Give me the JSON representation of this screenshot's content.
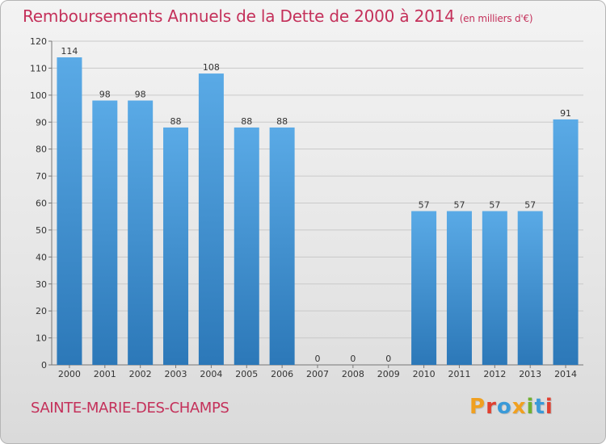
{
  "header": {
    "title": "Remboursements Annuels de la Dette de 2000 à 2014",
    "unit": "(en milliers d'€)"
  },
  "footer": {
    "commune": "SAINTE-MARIE-DES-CHAMPS",
    "logo": "Proxiti"
  },
  "colors": {
    "title": "#c4305a",
    "bar_light": "#5aaae6",
    "bar_dark": "#2c78b8",
    "logo_letters": [
      "#f0a020",
      "#e04030",
      "#3a9ad8",
      "#f0a020",
      "#70b030",
      "#3a9ad8",
      "#e04030"
    ]
  },
  "chart_data": {
    "type": "bar",
    "categories": [
      "2000",
      "2001",
      "2002",
      "2003",
      "2004",
      "2005",
      "2006",
      "2007",
      "2008",
      "2009",
      "2010",
      "2011",
      "2012",
      "2013",
      "2014"
    ],
    "values": [
      114,
      98,
      98,
      88,
      108,
      88,
      88,
      0,
      0,
      0,
      57,
      57,
      57,
      57,
      91
    ],
    "ylim": [
      0,
      120
    ],
    "yticks": [
      0,
      10,
      20,
      30,
      40,
      50,
      60,
      70,
      80,
      90,
      100,
      110,
      120
    ],
    "grid": true,
    "data_labels": true
  }
}
